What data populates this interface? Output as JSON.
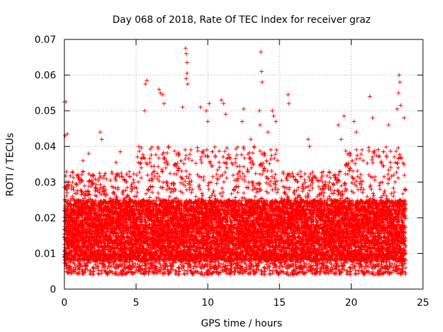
{
  "chart_data": {
    "type": "scatter",
    "title": "Day 068 of 2018, Rate Of TEC Index for receiver graz",
    "xlabel": "GPS time / hours",
    "ylabel": "ROTI / TECUs",
    "xlim": [
      0,
      25
    ],
    "ylim": [
      0,
      0.07
    ],
    "x_ticks": [
      0,
      5,
      10,
      15,
      20,
      25
    ],
    "x_tick_labels": [
      "0",
      "5",
      "10",
      "15",
      "20",
      "25"
    ],
    "y_ticks": [
      0,
      0.01,
      0.02,
      0.03,
      0.04,
      0.05,
      0.06,
      0.07
    ],
    "y_tick_labels": [
      "0",
      "0.01",
      "0.02",
      "0.03",
      "0.04",
      "0.05",
      "0.06",
      "0.07"
    ],
    "grid": true,
    "marker": "+",
    "series": [
      {
        "name": "ROTI",
        "color": "#ff0000",
        "description": "Dense ROTI samples from 0 to ~23.8 h, mostly between 0.005 and 0.03 TECU/min, with spikes up to ~0.067",
        "notable_points": [
          {
            "x": 0.0,
            "y": 0.0525
          },
          {
            "x": 0.1,
            "y": 0.0525
          },
          {
            "x": 0.05,
            "y": 0.043
          },
          {
            "x": 0.2,
            "y": 0.0435
          },
          {
            "x": 1.3,
            "y": 0.036
          },
          {
            "x": 1.7,
            "y": 0.038
          },
          {
            "x": 2.5,
            "y": 0.044
          },
          {
            "x": 2.6,
            "y": 0.042
          },
          {
            "x": 3.6,
            "y": 0.0355
          },
          {
            "x": 3.9,
            "y": 0.0385
          },
          {
            "x": 5.2,
            "y": 0.04
          },
          {
            "x": 5.6,
            "y": 0.05
          },
          {
            "x": 5.75,
            "y": 0.0585
          },
          {
            "x": 5.65,
            "y": 0.0575
          },
          {
            "x": 6.6,
            "y": 0.056
          },
          {
            "x": 6.7,
            "y": 0.055
          },
          {
            "x": 6.85,
            "y": 0.0545
          },
          {
            "x": 6.95,
            "y": 0.052
          },
          {
            "x": 8.25,
            "y": 0.051
          },
          {
            "x": 8.45,
            "y": 0.0675
          },
          {
            "x": 8.5,
            "y": 0.066
          },
          {
            "x": 8.55,
            "y": 0.0635
          },
          {
            "x": 8.55,
            "y": 0.0605
          },
          {
            "x": 8.5,
            "y": 0.059
          },
          {
            "x": 8.6,
            "y": 0.0575
          },
          {
            "x": 9.5,
            "y": 0.051
          },
          {
            "x": 9.9,
            "y": 0.05
          },
          {
            "x": 10.0,
            "y": 0.047
          },
          {
            "x": 10.1,
            "y": 0.052
          },
          {
            "x": 10.95,
            "y": 0.053
          },
          {
            "x": 11.1,
            "y": 0.052
          },
          {
            "x": 11.25,
            "y": 0.049
          },
          {
            "x": 12.4,
            "y": 0.047
          },
          {
            "x": 12.5,
            "y": 0.0505
          },
          {
            "x": 13.0,
            "y": 0.042
          },
          {
            "x": 13.6,
            "y": 0.05
          },
          {
            "x": 13.7,
            "y": 0.0665
          },
          {
            "x": 13.75,
            "y": 0.061
          },
          {
            "x": 13.8,
            "y": 0.058
          },
          {
            "x": 13.65,
            "y": 0.046
          },
          {
            "x": 14.2,
            "y": 0.044
          },
          {
            "x": 14.5,
            "y": 0.05
          },
          {
            "x": 14.6,
            "y": 0.0485
          },
          {
            "x": 14.75,
            "y": 0.047
          },
          {
            "x": 15.6,
            "y": 0.0545
          },
          {
            "x": 15.65,
            "y": 0.052
          },
          {
            "x": 17.0,
            "y": 0.042
          },
          {
            "x": 17.1,
            "y": 0.04
          },
          {
            "x": 19.1,
            "y": 0.046
          },
          {
            "x": 19.3,
            "y": 0.042
          },
          {
            "x": 19.5,
            "y": 0.0485
          },
          {
            "x": 20.2,
            "y": 0.047
          },
          {
            "x": 20.35,
            "y": 0.044
          },
          {
            "x": 21.3,
            "y": 0.054
          },
          {
            "x": 21.5,
            "y": 0.048
          },
          {
            "x": 22.6,
            "y": 0.046
          },
          {
            "x": 23.2,
            "y": 0.0505
          },
          {
            "x": 23.35,
            "y": 0.06
          },
          {
            "x": 23.4,
            "y": 0.058
          },
          {
            "x": 23.3,
            "y": 0.055
          },
          {
            "x": 23.45,
            "y": 0.0515
          },
          {
            "x": 23.7,
            "y": 0.048
          }
        ]
      }
    ],
    "generator": {
      "x_start": 0.0,
      "x_end": 23.8,
      "x_step": 0.006,
      "y_base_min": 0.008,
      "y_base_max": 0.025,
      "y_floor": 0.004,
      "elevated_windows": [
        [
          5.0,
          8.0
        ],
        [
          8.0,
          12.5
        ],
        [
          12.5,
          15.0
        ],
        [
          19.5,
          23.8
        ]
      ]
    }
  }
}
